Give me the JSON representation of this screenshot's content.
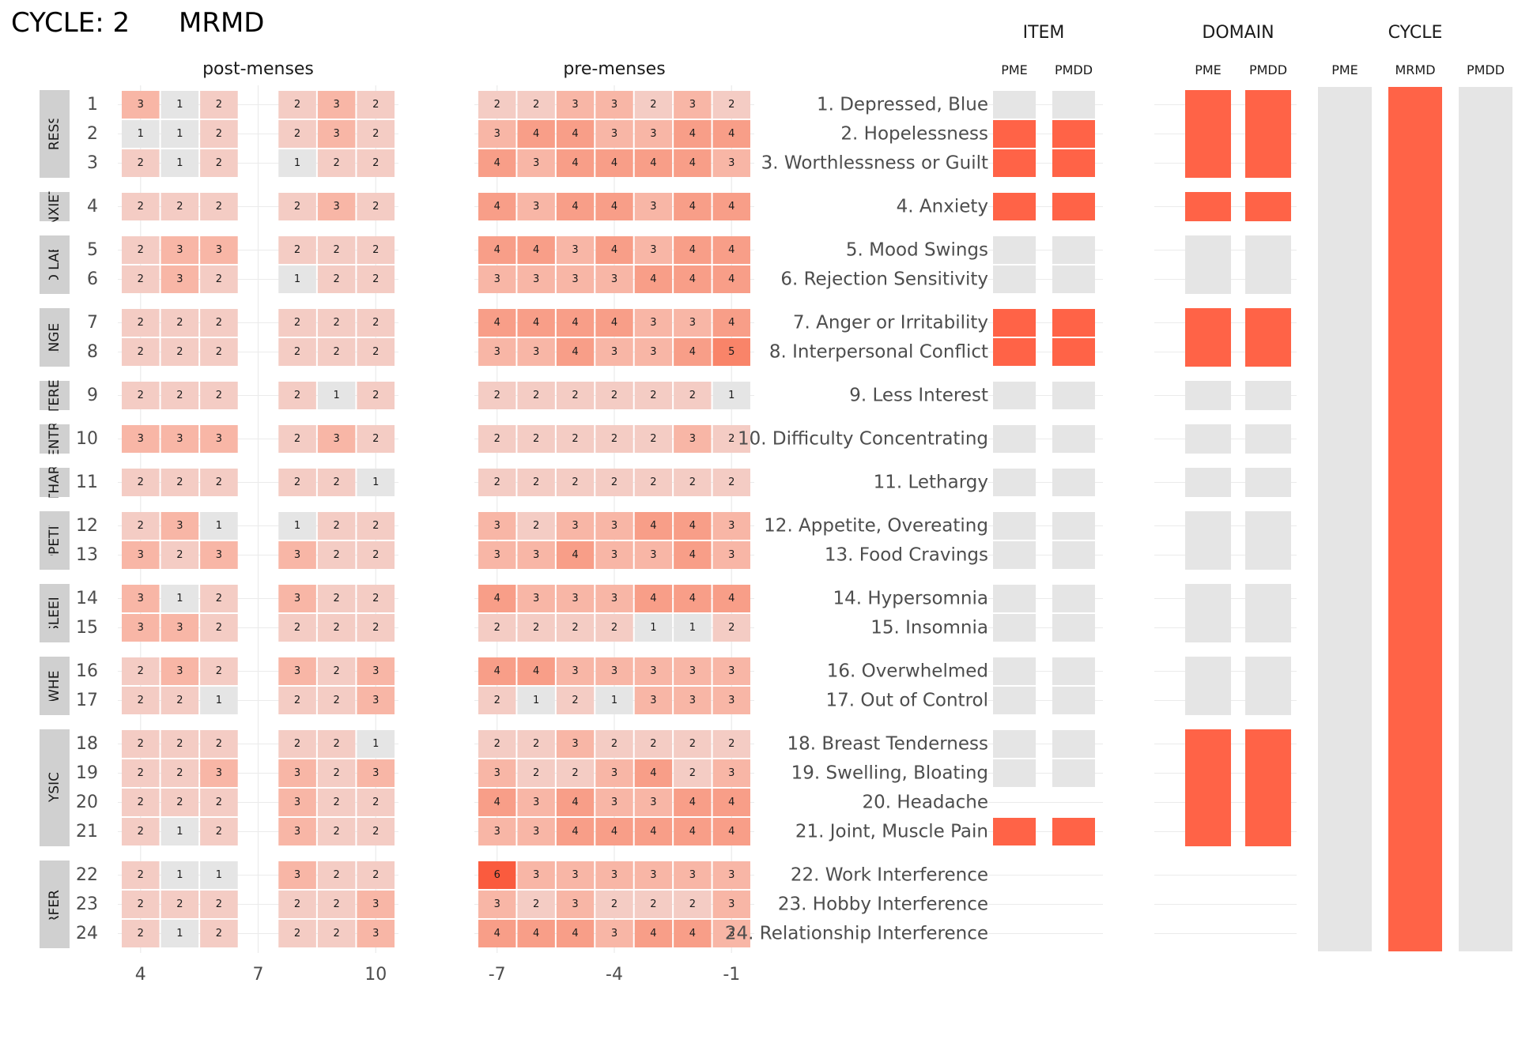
{
  "header": {
    "cycle_label": "CYCLE: 2",
    "diagnosis": "MRMD"
  },
  "colors": {
    "scale": [
      "#e5e5e5",
      "#f4ccc4",
      "#f8b6a6",
      "#f89e88",
      "#f98469",
      "#fa5b3e"
    ],
    "strip_bg": "#d0d0d0",
    "flag_true": "#ff6347",
    "flag_false": "#e5e5e5",
    "grid": "#ebebeb"
  },
  "chart_data": {
    "type": "heatmap",
    "facets": [
      {
        "title": "post-menses",
        "days": [
          4,
          5,
          6,
          8,
          9,
          10
        ],
        "ticks": [
          4,
          7,
          10
        ],
        "xlim": [
          3.5,
          10.5
        ]
      },
      {
        "title": "pre-menses",
        "days": [
          -7,
          -6,
          -5,
          -4,
          -3,
          -2,
          -1
        ],
        "ticks": [
          -7,
          -4,
          -1
        ],
        "xlim": [
          -7.5,
          -0.5
        ]
      }
    ],
    "domains": [
      {
        "label": "DEPRESSION",
        "items": [
          1,
          2,
          3
        ]
      },
      {
        "label": "ANXIETY",
        "items": [
          4
        ]
      },
      {
        "label": "MOOD LABILITY",
        "items": [
          5,
          6
        ]
      },
      {
        "label": "ANGER",
        "items": [
          7,
          8
        ]
      },
      {
        "label": "INTEREST",
        "items": [
          9
        ]
      },
      {
        "label": "CONCENTRATION",
        "items": [
          10
        ]
      },
      {
        "label": "LETHARGY",
        "items": [
          11
        ]
      },
      {
        "label": "APPETITE",
        "items": [
          12,
          13
        ]
      },
      {
        "label": "SLEEP",
        "items": [
          14,
          15
        ]
      },
      {
        "label": "OVERWHELMED",
        "items": [
          16,
          17
        ]
      },
      {
        "label": "PHYSICAL",
        "items": [
          18,
          19,
          20,
          21
        ]
      },
      {
        "label": "INTERFERENCE",
        "items": [
          22,
          23,
          24
        ]
      }
    ],
    "items": [
      {
        "num": 1,
        "label": "1. Depressed, Blue",
        "post": [
          3,
          1,
          2,
          2,
          3,
          2
        ],
        "pre": [
          2,
          2,
          3,
          3,
          2,
          3,
          2
        ]
      },
      {
        "num": 2,
        "label": "2. Hopelessness",
        "post": [
          1,
          1,
          2,
          2,
          3,
          2
        ],
        "pre": [
          3,
          4,
          4,
          3,
          3,
          4,
          4
        ]
      },
      {
        "num": 3,
        "label": "3. Worthlessness or Guilt",
        "post": [
          2,
          1,
          2,
          1,
          2,
          2
        ],
        "pre": [
          4,
          3,
          4,
          4,
          4,
          4,
          3
        ]
      },
      {
        "num": 4,
        "label": "4. Anxiety",
        "post": [
          2,
          2,
          2,
          2,
          3,
          2
        ],
        "pre": [
          4,
          3,
          4,
          4,
          3,
          4,
          4
        ]
      },
      {
        "num": 5,
        "label": "5. Mood Swings",
        "post": [
          2,
          3,
          3,
          2,
          2,
          2
        ],
        "pre": [
          4,
          4,
          3,
          4,
          3,
          4,
          4
        ]
      },
      {
        "num": 6,
        "label": "6. Rejection Sensitivity",
        "post": [
          2,
          3,
          2,
          1,
          2,
          2
        ],
        "pre": [
          3,
          3,
          3,
          3,
          4,
          4,
          4
        ]
      },
      {
        "num": 7,
        "label": "7. Anger or Irritability",
        "post": [
          2,
          2,
          2,
          2,
          2,
          2
        ],
        "pre": [
          4,
          4,
          4,
          4,
          3,
          3,
          4
        ]
      },
      {
        "num": 8,
        "label": "8. Interpersonal Conflict",
        "post": [
          2,
          2,
          2,
          2,
          2,
          2
        ],
        "pre": [
          3,
          3,
          4,
          3,
          3,
          4,
          5
        ]
      },
      {
        "num": 9,
        "label": "9. Less Interest",
        "post": [
          2,
          2,
          2,
          2,
          1,
          2
        ],
        "pre": [
          2,
          2,
          2,
          2,
          2,
          2,
          1
        ]
      },
      {
        "num": 10,
        "label": "10. Difficulty Concentrating",
        "post": [
          3,
          3,
          3,
          2,
          3,
          2
        ],
        "pre": [
          2,
          2,
          2,
          2,
          2,
          3,
          2
        ]
      },
      {
        "num": 11,
        "label": "11. Lethargy",
        "post": [
          2,
          2,
          2,
          2,
          2,
          1
        ],
        "pre": [
          2,
          2,
          2,
          2,
          2,
          2,
          2
        ]
      },
      {
        "num": 12,
        "label": "12. Appetite, Overeating",
        "post": [
          2,
          3,
          1,
          1,
          2,
          2
        ],
        "pre": [
          3,
          2,
          3,
          3,
          4,
          4,
          3
        ]
      },
      {
        "num": 13,
        "label": "13. Food Cravings",
        "post": [
          3,
          2,
          3,
          3,
          2,
          2
        ],
        "pre": [
          3,
          3,
          4,
          3,
          3,
          4,
          3
        ]
      },
      {
        "num": 14,
        "label": "14. Hypersomnia",
        "post": [
          3,
          1,
          2,
          3,
          2,
          2
        ],
        "pre": [
          4,
          3,
          3,
          3,
          4,
          4,
          4
        ]
      },
      {
        "num": 15,
        "label": "15. Insomnia",
        "post": [
          3,
          3,
          2,
          2,
          2,
          2
        ],
        "pre": [
          2,
          2,
          2,
          2,
          1,
          1,
          2
        ]
      },
      {
        "num": 16,
        "label": "16. Overwhelmed",
        "post": [
          2,
          3,
          2,
          3,
          2,
          3
        ],
        "pre": [
          4,
          4,
          3,
          3,
          3,
          3,
          3
        ]
      },
      {
        "num": 17,
        "label": "17. Out of Control",
        "post": [
          2,
          2,
          1,
          2,
          2,
          3
        ],
        "pre": [
          2,
          1,
          2,
          1,
          3,
          3,
          3
        ]
      },
      {
        "num": 18,
        "label": "18. Breast Tenderness",
        "post": [
          2,
          2,
          2,
          2,
          2,
          1
        ],
        "pre": [
          2,
          2,
          3,
          2,
          2,
          2,
          2
        ]
      },
      {
        "num": 19,
        "label": "19. Swelling, Bloating",
        "post": [
          2,
          2,
          3,
          3,
          2,
          3
        ],
        "pre": [
          3,
          2,
          2,
          3,
          4,
          2,
          3
        ]
      },
      {
        "num": 20,
        "label": "20. Headache",
        "post": [
          2,
          2,
          2,
          3,
          2,
          2
        ],
        "pre": [
          4,
          3,
          4,
          3,
          3,
          4,
          4
        ]
      },
      {
        "num": 21,
        "label": "21. Joint, Muscle Pain",
        "post": [
          2,
          1,
          2,
          3,
          2,
          2
        ],
        "pre": [
          3,
          3,
          4,
          4,
          4,
          4,
          4
        ]
      },
      {
        "num": 22,
        "label": "22. Work Interference",
        "post": [
          2,
          1,
          1,
          3,
          2,
          2
        ],
        "pre": [
          6,
          3,
          3,
          3,
          3,
          3,
          3
        ]
      },
      {
        "num": 23,
        "label": "23. Hobby Interference",
        "post": [
          2,
          2,
          2,
          2,
          2,
          3
        ],
        "pre": [
          3,
          2,
          3,
          2,
          2,
          2,
          3
        ]
      },
      {
        "num": 24,
        "label": "24. Relationship Interference",
        "post": [
          2,
          1,
          2,
          2,
          2,
          3
        ],
        "pre": [
          4,
          4,
          4,
          3,
          4,
          4,
          3
        ]
      }
    ],
    "item_flags": {
      "headers": [
        "PME",
        "PMDD"
      ],
      "true_items": [
        2,
        3,
        4,
        7,
        8,
        21
      ],
      "none_items": [
        20,
        22,
        23,
        24
      ]
    },
    "domain_flags": {
      "headers": [
        "PME",
        "PMDD"
      ],
      "true_domains": [
        "DEPRESSION",
        "ANXIETY",
        "ANGER",
        "PHYSICAL"
      ],
      "none_domains": [
        "INTERFERENCE"
      ]
    },
    "cycle_flags": {
      "headers": [
        "PME",
        "MRMD",
        "PMDD"
      ],
      "values": [
        false,
        true,
        false
      ]
    },
    "section_titles": {
      "item": "ITEM",
      "domain": "DOMAIN",
      "cycle": "CYCLE"
    }
  }
}
